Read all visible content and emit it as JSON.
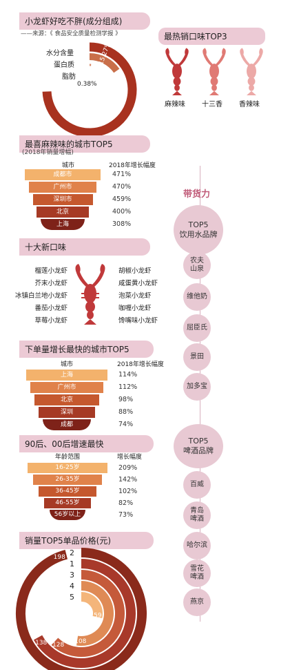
{
  "composition": {
    "title": "小龙虾好吃不胖(成分组成)",
    "source": "——来源：《 食品安全质量检测学报 》",
    "chart_data": {
      "type": "pie",
      "categories": [
        "水分含量",
        "蛋白质",
        "脂肪"
      ],
      "values": [
        74.35,
        15.27,
        0.38
      ],
      "value_labels": [
        "74.35%",
        "15.27%",
        "0.38%"
      ]
    }
  },
  "top3": {
    "title": "最热销口味TOP3",
    "items": [
      "麻辣味",
      "十三香",
      "香辣味"
    ],
    "colors": [
      "#c0393a",
      "#e07a74",
      "#eca9a7"
    ]
  },
  "city_spicy": {
    "title": "最喜麻辣味的城市TOP5",
    "subtitle": "(2018年销量增幅)",
    "col_city": "城市",
    "col_growth": "2018年增长幅度",
    "chart_data": {
      "type": "bar",
      "categories": [
        "成都市",
        "广州市",
        "深圳市",
        "北京",
        "上海"
      ],
      "values": [
        471,
        470,
        459,
        400,
        308
      ],
      "value_labels": [
        "471%",
        "470%",
        "459%",
        "400%",
        "308%"
      ]
    }
  },
  "new_flavors": {
    "title": "十大新口味",
    "left": [
      "榴莲小龙虾",
      "芥末小龙虾",
      "冰镇白兰地小龙虾",
      "番茄小龙虾",
      "草莓小龙虾"
    ],
    "right": [
      "胡椒小龙虾",
      "咸蛋黄小龙虾",
      "泡菜小龙虾",
      "咖喱小龙虾",
      "馋嘴味小龙虾"
    ]
  },
  "order_growth": {
    "title": "下单量增长最快的城市TOP5",
    "col_city": "城市",
    "col_growth": "2018年增长幅度",
    "chart_data": {
      "type": "bar",
      "categories": [
        "上海",
        "广州市",
        "北京",
        "深圳",
        "成都"
      ],
      "values": [
        114,
        112,
        98,
        88,
        74
      ],
      "value_labels": [
        "114%",
        "112%",
        "98%",
        "88%",
        "74%"
      ]
    }
  },
  "age_growth": {
    "title": "90后、00后增速最快",
    "col_age": "年龄范围",
    "col_growth": "增长幅度",
    "chart_data": {
      "type": "bar",
      "categories": [
        "16-25岁",
        "26-35岁",
        "36-45岁",
        "46-55岁",
        "56岁以上"
      ],
      "values": [
        209,
        142,
        102,
        82,
        73
      ],
      "value_labels": [
        "209%",
        "142%",
        "102%",
        "82%",
        "73%"
      ]
    }
  },
  "price": {
    "title": "销量TOP5单品价格(元)",
    "chart_data": {
      "type": "bar",
      "categories": [
        "2",
        "1",
        "3",
        "4",
        "5"
      ],
      "values": [
        198,
        138,
        128,
        108,
        59
      ],
      "value_labels": [
        "198",
        "138",
        "128",
        "108",
        "59"
      ]
    }
  },
  "right_col": {
    "bring_goods": "带货力",
    "water_title": "TOP5\n饮用水品牌",
    "water": [
      "农夫\n山泉",
      "维他奶",
      "屈臣氏",
      "景田",
      "加多宝"
    ],
    "beer_title": "TOP5\n啤酒品牌",
    "beer": [
      "百威",
      "青岛\n啤酒",
      "哈尔滨",
      "雪花\n啤酒",
      "燕京"
    ]
  },
  "colors": {
    "section_bg": "#eccad5",
    "funnel": [
      "#f3b26c",
      "#e0824a",
      "#c5582e",
      "#a63a25",
      "#7e2219"
    ],
    "ring_dark": "#8a2a1b",
    "ring_light": "#f4b57a"
  }
}
